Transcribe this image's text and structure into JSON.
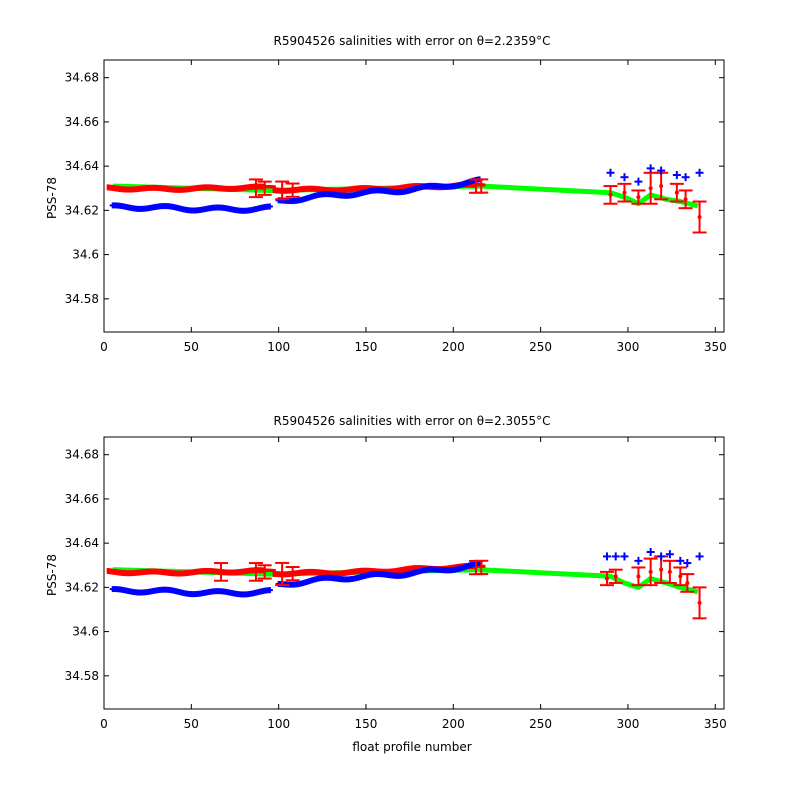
{
  "chart_data": [
    {
      "type": "scatter",
      "title": "R5904526 salinities with error on θ=2.2359°C",
      "xlabel": "",
      "ylabel": "PSS-78",
      "xlim": [
        0,
        355
      ],
      "ylim": [
        34.565,
        34.688
      ],
      "xticks": [
        "0",
        "50",
        "100",
        "150",
        "200",
        "250",
        "300",
        "350"
      ],
      "yticks": [
        "34.58",
        "34.6",
        "34.62",
        "34.64",
        "34.66",
        "34.68"
      ],
      "colors": {
        "calibrated": "#ff0000",
        "mapped": "#00ff00",
        "raw": "#0000ff"
      },
      "segments": [
        {
          "x0": 5,
          "x1": 95,
          "raw0": 34.621,
          "raw1": 34.621,
          "cal0": 34.63,
          "cal1": 34.63,
          "map0": 34.631,
          "map1": 34.629
        },
        {
          "x0": 100,
          "x1": 215,
          "raw0": 34.624,
          "raw1": 34.633,
          "cal0": 34.629,
          "cal1": 34.631,
          "map0": 34.629,
          "map1": 34.631
        }
      ],
      "mapped_line": {
        "x": [
          215,
          290,
          298,
          306,
          313,
          322,
          330,
          340
        ],
        "y": [
          34.631,
          34.628,
          34.626,
          34.623,
          34.627,
          34.625,
          34.624,
          34.622
        ]
      },
      "late_raw": {
        "x": [
          290,
          298,
          306,
          313,
          319,
          328,
          333,
          341
        ],
        "y": [
          34.637,
          34.635,
          34.633,
          34.639,
          34.638,
          34.636,
          34.635,
          34.637
        ]
      },
      "late_cal": {
        "x": [
          290,
          298,
          306,
          313,
          319,
          328,
          333,
          341
        ],
        "y": [
          34.627,
          34.628,
          34.626,
          34.63,
          34.631,
          34.628,
          34.625,
          34.617
        ],
        "err": [
          0.004,
          0.004,
          0.003,
          0.007,
          0.006,
          0.004,
          0.004,
          0.007
        ]
      },
      "early_err": {
        "x": [
          87,
          92,
          102,
          108,
          213,
          216
        ],
        "err": [
          0.004,
          0.003,
          0.004,
          0.003,
          0.003,
          0.003
        ]
      }
    },
    {
      "type": "scatter",
      "title": "R5904526 salinities with error on θ=2.3055°C",
      "xlabel": "float profile number",
      "ylabel": "PSS-78",
      "xlim": [
        0,
        355
      ],
      "ylim": [
        34.565,
        34.688
      ],
      "xticks": [
        "0",
        "50",
        "100",
        "150",
        "200",
        "250",
        "300",
        "350"
      ],
      "yticks": [
        "34.58",
        "34.6",
        "34.62",
        "34.64",
        "34.66",
        "34.68"
      ],
      "colors": {
        "calibrated": "#ff0000",
        "mapped": "#00ff00",
        "raw": "#0000ff"
      },
      "segments": [
        {
          "x0": 5,
          "x1": 95,
          "raw0": 34.618,
          "raw1": 34.618,
          "cal0": 34.627,
          "cal1": 34.627,
          "map0": 34.628,
          "map1": 34.626
        },
        {
          "x0": 100,
          "x1": 215,
          "raw0": 34.621,
          "raw1": 34.63,
          "cal0": 34.626,
          "cal1": 34.629,
          "map0": 34.626,
          "map1": 34.628
        }
      ],
      "mapped_line": {
        "x": [
          215,
          290,
          298,
          306,
          313,
          322,
          330,
          340
        ],
        "y": [
          34.628,
          34.625,
          34.622,
          34.62,
          34.624,
          34.622,
          34.62,
          34.618
        ]
      },
      "late_raw": {
        "x": [
          288,
          293,
          298,
          306,
          313,
          319,
          324,
          330,
          334,
          341
        ],
        "y": [
          34.634,
          34.634,
          34.634,
          34.632,
          34.636,
          34.634,
          34.635,
          34.632,
          34.631,
          34.634
        ]
      },
      "late_cal": {
        "x": [
          288,
          293,
          306,
          313,
          319,
          324,
          330,
          334,
          341
        ],
        "y": [
          34.624,
          34.625,
          34.625,
          34.627,
          34.628,
          34.627,
          34.625,
          34.622,
          34.613
        ],
        "err": [
          0.003,
          0.003,
          0.004,
          0.006,
          0.006,
          0.005,
          0.004,
          0.004,
          0.007
        ]
      },
      "early_err": {
        "x": [
          67,
          87,
          92,
          102,
          108,
          213,
          216
        ],
        "err": [
          0.004,
          0.004,
          0.003,
          0.005,
          0.003,
          0.003,
          0.003
        ]
      }
    }
  ]
}
